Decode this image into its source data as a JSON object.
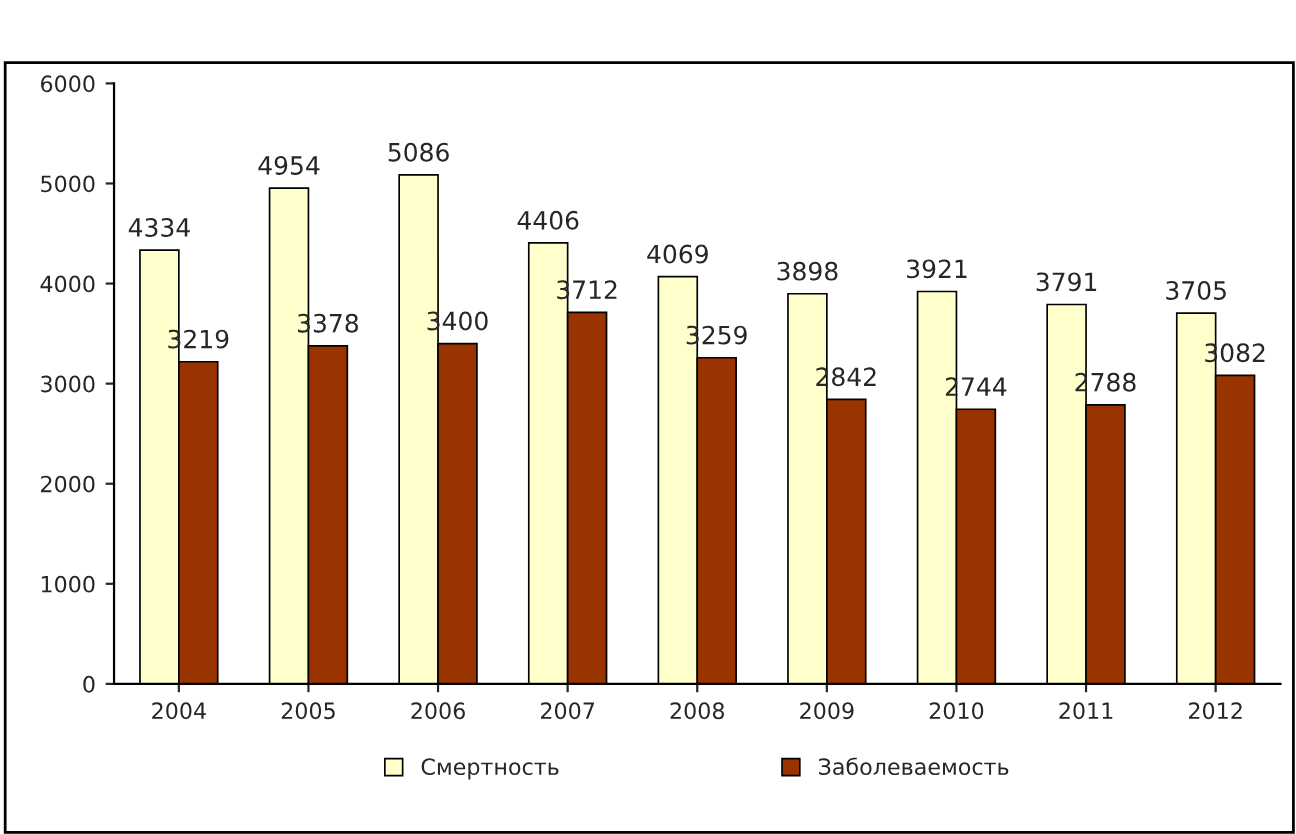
{
  "chart_data": {
    "type": "bar",
    "categories": [
      "2004",
      "2005",
      "2006",
      "2007",
      "2008",
      "2009",
      "2010",
      "2011",
      "2012"
    ],
    "series": [
      {
        "name": "Смертность",
        "color": "#ffffcc",
        "values": [
          4334,
          4954,
          5086,
          4406,
          4069,
          3898,
          3921,
          3791,
          3705
        ]
      },
      {
        "name": "Заболеваемость",
        "color": "#993300",
        "values": [
          3219,
          3378,
          3400,
          3712,
          3259,
          2842,
          2744,
          2788,
          3082
        ]
      }
    ],
    "ylim": [
      0,
      6000
    ],
    "yticks": [
      0,
      1000,
      2000,
      3000,
      4000,
      5000,
      6000
    ],
    "data_labels": true,
    "grid": false,
    "legend": "bottom"
  }
}
